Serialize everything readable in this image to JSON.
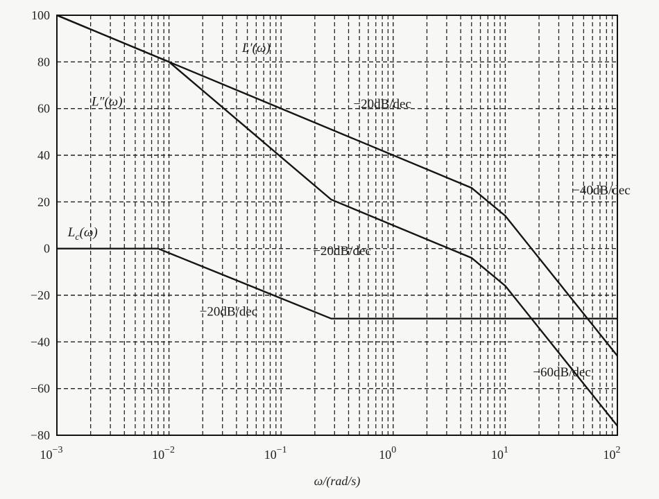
{
  "chart_data": {
    "type": "line",
    "x_scale": "log",
    "xlim": [
      0.001,
      100
    ],
    "ylim": [
      -80,
      100
    ],
    "grid": true,
    "xlabel": "ω/(rad/s)",
    "ylabel": "",
    "x_ticks": [
      {
        "value": 0.001,
        "base": "10",
        "exp": "−3"
      },
      {
        "value": 0.01,
        "base": "10",
        "exp": "−2"
      },
      {
        "value": 0.1,
        "base": "10",
        "exp": "−1"
      },
      {
        "value": 1,
        "base": "10",
        "exp": "0"
      },
      {
        "value": 10,
        "base": "10",
        "exp": "1"
      },
      {
        "value": 100,
        "base": "10",
        "exp": "2"
      }
    ],
    "y_ticks": [
      {
        "value": 100,
        "label": "100"
      },
      {
        "value": 80,
        "label": "80"
      },
      {
        "value": 60,
        "label": "60"
      },
      {
        "value": 40,
        "label": "40"
      },
      {
        "value": 20,
        "label": "20"
      },
      {
        "value": 0,
        "label": "0"
      },
      {
        "value": -20,
        "label": "−20"
      },
      {
        "value": -40,
        "label": "−40"
      },
      {
        "value": -60,
        "label": "−60"
      },
      {
        "value": -80,
        "label": "−80"
      }
    ],
    "series": [
      {
        "name": "L'(ω)",
        "x": [
          0.001,
          0.01,
          5,
          10,
          100
        ],
        "y": [
          100,
          80,
          26,
          14,
          -46
        ]
      },
      {
        "name": "L''(ω)",
        "x": [
          0.001,
          0.01,
          0.28,
          5,
          10,
          100
        ],
        "y": [
          100,
          80,
          21,
          -4,
          -16,
          -76
        ]
      },
      {
        "name": "Lc(ω)",
        "x": [
          0.001,
          0.008,
          0.28,
          100
        ],
        "y": [
          0,
          0,
          -30,
          -30
        ]
      }
    ],
    "annotations": [
      {
        "id": "a_lp",
        "text": "L′(ω)",
        "x": 0.06,
        "y": 86
      },
      {
        "id": "a_lpp",
        "text": "L″(ω)",
        "x": 0.0028,
        "y": 63
      },
      {
        "id": "a_lc",
        "text": "Lc(ω)",
        "x": 0.0017,
        "y": 7
      },
      {
        "id": "a_s1",
        "text": "−20dB/dec",
        "x": 0.8,
        "y": 62
      },
      {
        "id": "a_s2",
        "text": "−40dB/dec",
        "x": 72,
        "y": 25
      },
      {
        "id": "a_s3",
        "text": "−20dB/dec",
        "x": 0.35,
        "y": -1
      },
      {
        "id": "a_s4",
        "text": "−20dB/dec",
        "x": 0.034,
        "y": -27
      },
      {
        "id": "a_s5",
        "text": "−60dB/dec",
        "x": 32,
        "y": -53
      }
    ]
  }
}
